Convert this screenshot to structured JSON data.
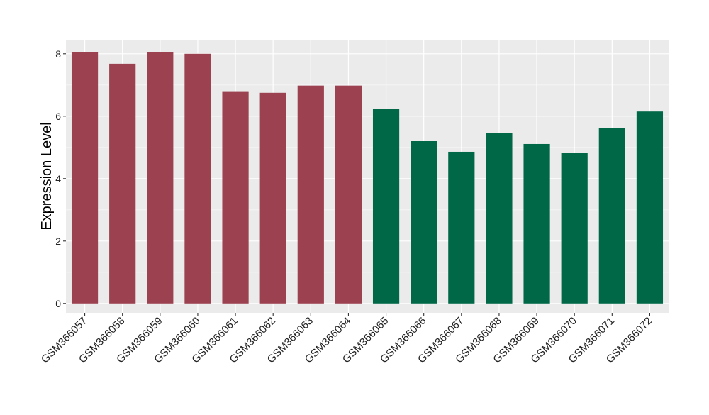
{
  "chart_data": {
    "type": "bar",
    "title": "",
    "xlabel": "",
    "ylabel": "Expression Level",
    "ylim": [
      -0.3,
      8.45
    ],
    "yticks": [
      0,
      2,
      4,
      6,
      8
    ],
    "grid": true,
    "legend": "none",
    "categories": [
      "GSM366057",
      "GSM366058",
      "GSM366059",
      "GSM366060",
      "GSM366061",
      "GSM366062",
      "GSM366063",
      "GSM366064",
      "GSM366065",
      "GSM366066",
      "GSM366067",
      "GSM366068",
      "GSM366069",
      "GSM366070",
      "GSM366071",
      "GSM366072"
    ],
    "values": [
      8.05,
      7.68,
      8.05,
      8.0,
      6.8,
      6.75,
      6.98,
      6.98,
      6.24,
      5.2,
      4.86,
      5.46,
      5.11,
      4.82,
      5.62,
      6.15
    ],
    "groups": [
      1,
      1,
      1,
      1,
      1,
      1,
      1,
      1,
      2,
      2,
      2,
      2,
      2,
      2,
      2,
      2
    ],
    "colors": {
      "group1": "#9b4150",
      "group2": "#006747",
      "panel_bg": "#ebebeb",
      "grid_major": "#ffffff",
      "grid_minor": "#f5f5f5"
    }
  }
}
